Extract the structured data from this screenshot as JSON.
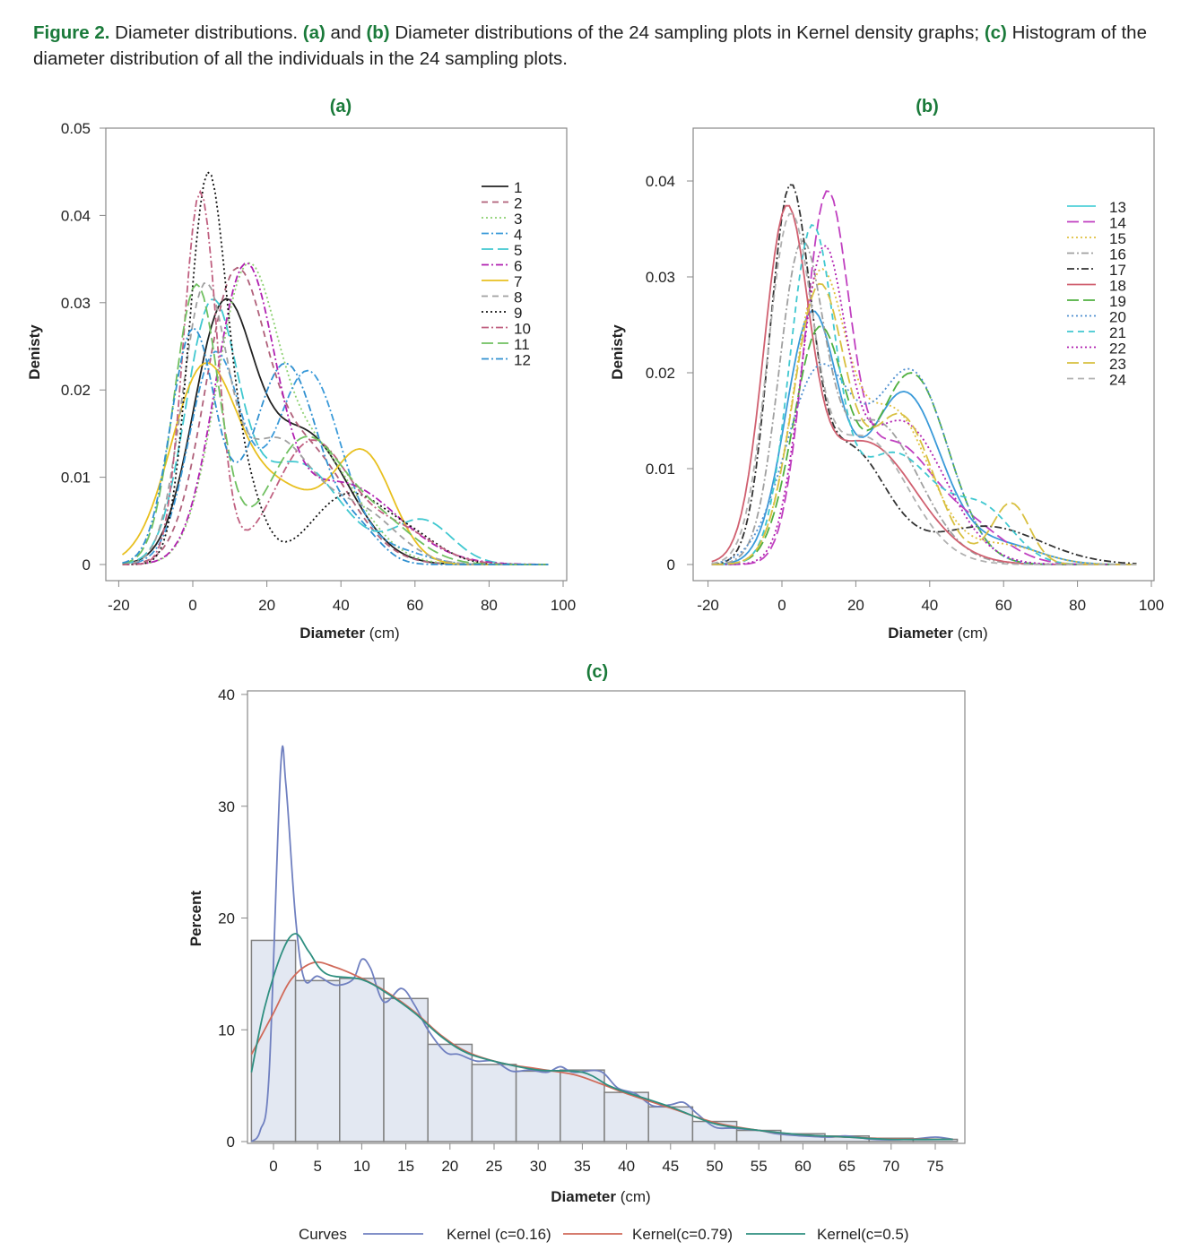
{
  "caption": {
    "label": "Figure 2.",
    "t1": " Diameter distributions. ",
    "a": "(a)",
    "t2": " and ",
    "b": "(b)",
    "t3": " Diameter distributions of the 24 sampling plots in Kernel density graphs; ",
    "c": "(c)",
    "t4": " Histogram of the diameter distribution of all the individuals in the 24 sampling plots."
  },
  "chart_data": [
    {
      "type": "line",
      "title": "(a)",
      "xlabel_bold": "Diameter",
      "xlabel_unit": " (cm)",
      "ylabel": "Denisty",
      "xlim": [
        -20,
        100
      ],
      "ylim": [
        0,
        0.05
      ],
      "xticks": [
        -20,
        0,
        20,
        40,
        60,
        80,
        100
      ],
      "yticks": [
        0,
        0.01,
        0.02,
        0.03,
        0.04,
        0.05
      ],
      "ytick_labels": [
        "0",
        "0.01",
        "0.02",
        "0.03",
        "0.04",
        "0.05"
      ],
      "x_range": [
        -19,
        96
      ],
      "legend_position": "top-right",
      "series_model": "gaussian mixture components [mean, sd, weight] in cm",
      "series": [
        {
          "name": "1",
          "color": "#222222",
          "style": "solid",
          "components": [
            [
              8,
              8,
              0.55
            ],
            [
              30,
              12,
              0.45
            ]
          ]
        },
        {
          "name": "2",
          "color": "#b0607a",
          "style": "dashed",
          "components": [
            [
              11,
              8,
              0.6
            ],
            [
              30,
              12,
              0.4
            ]
          ]
        },
        {
          "name": "3",
          "color": "#8cd070",
          "style": "dotted",
          "components": [
            [
              14,
              8,
              0.6
            ],
            [
              32,
              12,
              0.4
            ]
          ]
        },
        {
          "name": "4",
          "color": "#3a9ad9",
          "style": "dashdot",
          "components": [
            [
              6,
              7,
              0.42
            ],
            [
              31,
              9,
              0.5
            ],
            [
              55,
              8,
              0.03
            ]
          ]
        },
        {
          "name": "5",
          "color": "#40c8d0",
          "style": "longdash",
          "components": [
            [
              5,
              7,
              0.5
            ],
            [
              28,
              12,
              0.35
            ],
            [
              62,
              8,
              0.1
            ]
          ]
        },
        {
          "name": "6",
          "color": "#b020b0",
          "style": "dashdot",
          "components": [
            [
              14,
              8,
              0.65
            ],
            [
              40,
              15,
              0.35
            ]
          ]
        },
        {
          "name": "7",
          "color": "#e8c020",
          "style": "solid",
          "components": [
            [
              3,
              9,
              0.5
            ],
            [
              24,
              10,
              0.2
            ],
            [
              46,
              8,
              0.25
            ]
          ]
        },
        {
          "name": "8",
          "color": "#a0a0a0",
          "style": "dashed",
          "components": [
            [
              3,
              6,
              0.45
            ],
            [
              22,
              10,
              0.35
            ],
            [
              45,
              10,
              0.15
            ]
          ]
        },
        {
          "name": "9",
          "color": "#111111",
          "style": "dotted",
          "components": [
            [
              4,
              5,
              0.55
            ],
            [
              14,
              5,
              0.1
            ],
            [
              42,
              10,
              0.2
            ],
            [
              60,
              8,
              0.05
            ]
          ]
        },
        {
          "name": "10",
          "color": "#c06080",
          "style": "dashdot",
          "components": [
            [
              2,
              4.5,
              0.48
            ],
            [
              32,
              10,
              0.35
            ],
            [
              55,
              10,
              0.1
            ]
          ]
        },
        {
          "name": "11",
          "color": "#70c060",
          "style": "longdash",
          "components": [
            [
              1,
              6,
              0.48
            ],
            [
              30,
              10,
              0.35
            ],
            [
              50,
              10,
              0.12
            ]
          ]
        },
        {
          "name": "12",
          "color": "#3090d0",
          "style": "dashdot",
          "components": [
            [
              0,
              6,
              0.4
            ],
            [
              25,
              9,
              0.52
            ],
            [
              45,
              6,
              0.05
            ]
          ]
        }
      ]
    },
    {
      "type": "line",
      "title": "(b)",
      "xlabel_bold": "Diameter",
      "xlabel_unit": " (cm)",
      "ylabel": "Denisty",
      "xlim": [
        -20,
        100
      ],
      "ylim": [
        0,
        0.0455
      ],
      "xticks": [
        -20,
        0,
        20,
        40,
        60,
        80,
        100
      ],
      "yticks": [
        0,
        0.01,
        0.02,
        0.03,
        0.04
      ],
      "ytick_labels": [
        "0",
        "0.01",
        "0.02",
        "0.03",
        "0.04"
      ],
      "x_range": [
        -19,
        96
      ],
      "legend_position": "top-right",
      "series_model": "gaussian mixture components [mean, sd, weight] in cm",
      "series": [
        {
          "name": "13",
          "color": "#3a9ad9",
          "legend_color": "#50d0d8",
          "style": "solid",
          "components": [
            [
              8,
              7,
              0.45
            ],
            [
              33,
              10,
              0.45
            ],
            [
              60,
              10,
              0.05
            ]
          ]
        },
        {
          "name": "14",
          "color": "#c040c0",
          "style": "longdash",
          "components": [
            [
              12,
              6,
              0.55
            ],
            [
              30,
              10,
              0.3
            ],
            [
              50,
              10,
              0.1
            ]
          ]
        },
        {
          "name": "15",
          "color": "#e0c040",
          "style": "dotted",
          "components": [
            [
              10,
              7,
              0.5
            ],
            [
              30,
              10,
              0.4
            ],
            [
              60,
              10,
              0.05
            ]
          ]
        },
        {
          "name": "16",
          "color": "#a0a0a0",
          "style": "dashdot",
          "components": [
            [
              5,
              6,
              0.45
            ],
            [
              25,
              12,
              0.45
            ]
          ]
        },
        {
          "name": "17",
          "color": "#333333",
          "style": "dashdot",
          "components": [
            [
              2,
              5.5,
              0.5
            ],
            [
              18,
              10,
              0.3
            ],
            [
              55,
              15,
              0.15
            ]
          ]
        },
        {
          "name": "18",
          "color": "#d06070",
          "style": "solid",
          "components": [
            [
              1,
              6,
              0.5
            ],
            [
              22,
              14,
              0.45
            ]
          ]
        },
        {
          "name": "19",
          "color": "#50b040",
          "style": "longdash",
          "components": [
            [
              10,
              7,
              0.42
            ],
            [
              35,
              10,
              0.5
            ]
          ]
        },
        {
          "name": "20",
          "color": "#5090d0",
          "style": "dotted",
          "components": [
            [
              10,
              9,
              0.45
            ],
            [
              35,
              10,
              0.5
            ]
          ]
        },
        {
          "name": "21",
          "color": "#40c8d0",
          "style": "dashed",
          "components": [
            [
              8,
              6,
              0.5
            ],
            [
              30,
              12,
              0.35
            ],
            [
              55,
              8,
              0.1
            ]
          ]
        },
        {
          "name": "22",
          "color": "#b020b0",
          "style": "dotted",
          "components": [
            [
              11,
              6,
              0.45
            ],
            [
              32,
              12,
              0.45
            ]
          ]
        },
        {
          "name": "23",
          "color": "#d8c040",
          "style": "longdash",
          "components": [
            [
              10,
              7,
              0.5
            ],
            [
              32,
              9,
              0.35
            ],
            [
              62,
              5,
              0.08
            ]
          ]
        },
        {
          "name": "24",
          "color": "#b0b0b0",
          "style": "dashed",
          "components": [
            [
              2,
              6,
              0.5
            ],
            [
              22,
              12,
              0.4
            ]
          ]
        }
      ]
    },
    {
      "type": "bar",
      "title": "(c)",
      "xlabel_bold": "Diameter",
      "xlabel_unit": " (cm)",
      "ylabel": "Percent",
      "xlim": [
        -3,
        78
      ],
      "ylim": [
        0,
        40
      ],
      "bin_width": 5,
      "xticks": [
        0,
        5,
        10,
        15,
        20,
        25,
        30,
        35,
        40,
        45,
        50,
        55,
        60,
        65,
        70,
        75
      ],
      "yticks": [
        0,
        10,
        20,
        30,
        40
      ],
      "bar_fill": "#e3e8f2",
      "bar_stroke": "#808080",
      "bins": [
        0,
        5,
        10,
        15,
        20,
        25,
        30,
        35,
        40,
        45,
        50,
        55,
        60,
        65,
        70,
        75
      ],
      "values": [
        18.0,
        14.4,
        14.6,
        12.8,
        8.7,
        6.9,
        6.3,
        6.4,
        4.4,
        3.1,
        1.8,
        1.0,
        0.7,
        0.5,
        0.3,
        0.2
      ],
      "legend_title": "Curves",
      "legend_position": "bottom",
      "curves": [
        {
          "name": "Kernel (c=0.16)",
          "color": "#7080c0",
          "x": [
            -2.5,
            -1.5,
            -0.5,
            0.8,
            1.4,
            2.5,
            3.5,
            5,
            7,
            9,
            10,
            11,
            12.5,
            14.5,
            16,
            17.5,
            19.5,
            21,
            23,
            25,
            27,
            29,
            31,
            32.5,
            34,
            37,
            39,
            41,
            43,
            45,
            46.5,
            48,
            50,
            52,
            55,
            57,
            60,
            63,
            65,
            68,
            72,
            75,
            77
          ],
          "y": [
            0,
            1,
            6,
            33.3,
            32,
            20,
            14.5,
            14.8,
            14,
            14.5,
            16.3,
            15.5,
            12.5,
            13.7,
            12.2,
            10,
            8,
            7.8,
            7.2,
            7.2,
            6.3,
            6.4,
            6.2,
            6.7,
            6.2,
            6.3,
            4.8,
            4.3,
            3.2,
            3.3,
            3.5,
            2.5,
            1.3,
            1.2,
            1.0,
            0.7,
            0.5,
            0.4,
            0.5,
            0.2,
            0.2,
            0.4,
            0.2
          ]
        },
        {
          "name": "Kernel(c=0.79)",
          "color": "#d06a5a",
          "x": [
            -2.5,
            0,
            2,
            4.5,
            7,
            10,
            13,
            16,
            19,
            22,
            26,
            30,
            34,
            37,
            40,
            45,
            50,
            55,
            60,
            65,
            70,
            77
          ],
          "y": [
            7.8,
            11.5,
            14.5,
            16,
            15.6,
            14.6,
            13.3,
            11.6,
            9.5,
            8,
            7.0,
            6.5,
            6.0,
            5.2,
            4.3,
            3.0,
            1.7,
            1.0,
            0.6,
            0.4,
            0.25,
            0.2
          ]
        },
        {
          "name": "Kernel(c=0.5)",
          "color": "#2f8f80",
          "x": [
            -2.5,
            -1,
            1,
            2.5,
            4,
            6,
            10,
            13,
            16,
            19,
            22,
            26,
            30,
            35,
            38,
            40,
            45,
            50,
            55,
            60,
            65,
            70,
            77
          ],
          "y": [
            6.2,
            12,
            17,
            18.6,
            17,
            15,
            14.5,
            13.2,
            11.5,
            9.4,
            7.9,
            7.0,
            6.4,
            6.2,
            5.0,
            4.4,
            3.1,
            1.6,
            1.0,
            0.6,
            0.4,
            0.2,
            0.2
          ]
        }
      ]
    }
  ]
}
